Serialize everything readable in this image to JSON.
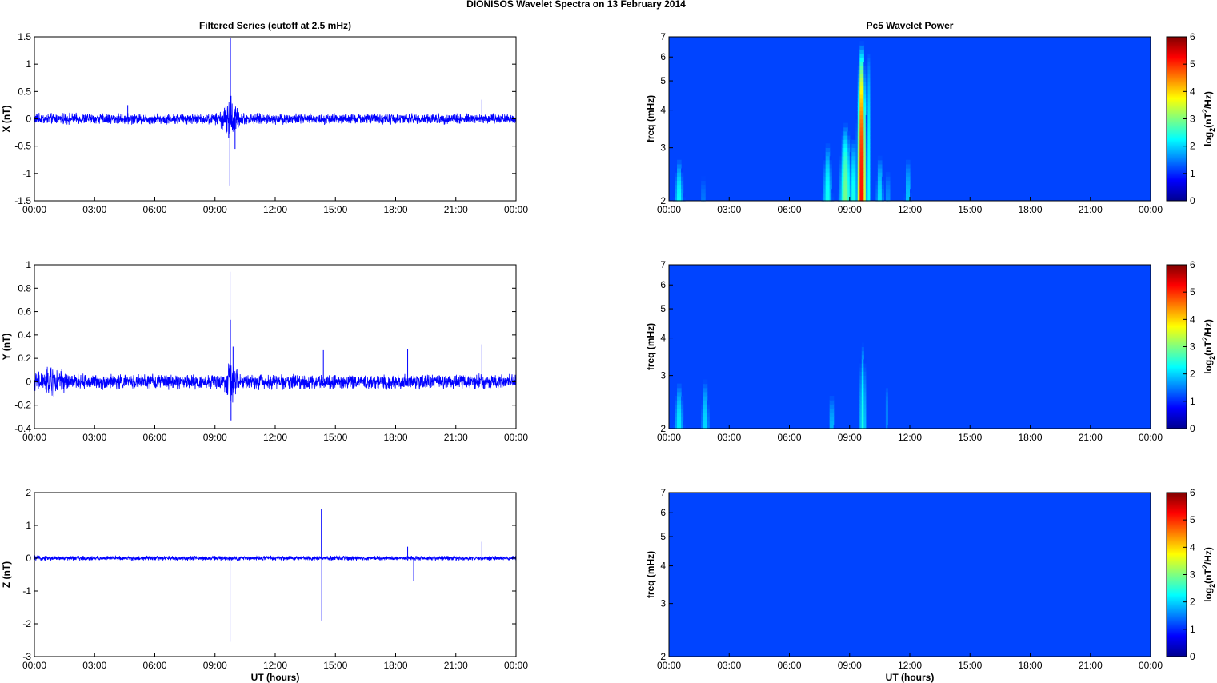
{
  "figure": {
    "suptitle": "DIONISOS Wavelet Spectra on 13 February  2014",
    "left_title": "Filtered Series (cutoff at 2.5 mHz)",
    "right_title": "Pc5 Wavelet Power",
    "xlabel": "UT (hours)",
    "freq_label": "freq (mHz)",
    "colorbar_label": "log2(nT2/Hz)"
  },
  "colors": {
    "series_line": "#0000ff",
    "axis": "#000000",
    "grid": "none",
    "colormap": "jet"
  },
  "chart_data": [
    {
      "type": "line",
      "panel": "X",
      "title": "Filtered Series (cutoff at 2.5 mHz)",
      "xlabel": "",
      "ylabel": "X (nT)",
      "xlim": [
        0,
        24
      ],
      "ylim": [
        -1.5,
        1.5
      ],
      "xticks": [
        "00:00",
        "03:00",
        "06:00",
        "09:00",
        "12:00",
        "15:00",
        "18:00",
        "21:00",
        "00:00"
      ],
      "yticks": [
        "-1.5",
        "-1",
        "-0.5",
        "0",
        "0.5",
        "1",
        "1.5"
      ],
      "background_amplitude": 0.07,
      "bursts": [
        {
          "t": 9.75,
          "a": 0.18,
          "w": 0.8
        }
      ],
      "spikes": [
        {
          "t": 9.77,
          "v": 1.47
        },
        {
          "t": 9.74,
          "v": -1.22
        },
        {
          "t": 9.8,
          "v": 0.42
        },
        {
          "t": 9.68,
          "v": -0.35
        },
        {
          "t": 4.65,
          "v": 0.25
        },
        {
          "t": 22.3,
          "v": 0.35
        },
        {
          "t": 10.0,
          "v": -0.55
        }
      ]
    },
    {
      "type": "heatmap",
      "panel": "X",
      "title": "Pc5 Wavelet Power",
      "ylabel": "freq (mHz)",
      "xlim": [
        0,
        24
      ],
      "ylim": [
        2,
        7
      ],
      "yscale": "log",
      "yticks": [
        "2",
        "3",
        "4",
        "5",
        "6",
        "7"
      ],
      "clim": [
        0,
        6
      ],
      "colorbar_ticks": [
        "0",
        "1",
        "2",
        "3",
        "4",
        "5",
        "6"
      ],
      "colorbar_label": "log2(nT2/Hz)",
      "blobs": [
        {
          "t": 0.5,
          "fc": 2.0,
          "fh": 2.9,
          "w": 0.22,
          "p": 2.1
        },
        {
          "t": 1.7,
          "fc": 2.0,
          "fh": 2.7,
          "w": 0.12,
          "p": 1.1
        },
        {
          "t": 7.9,
          "fc": 2.0,
          "fh": 3.3,
          "w": 0.22,
          "p": 2.2
        },
        {
          "t": 8.8,
          "fc": 2.0,
          "fh": 3.8,
          "w": 0.28,
          "p": 3.0
        },
        {
          "t": 9.2,
          "fc": 2.0,
          "fh": 3.5,
          "w": 0.15,
          "p": 2.4
        },
        {
          "t": 9.6,
          "fc": 2.0,
          "fh": 7.0,
          "w": 0.2,
          "p": 6.2
        },
        {
          "t": 9.95,
          "fc": 2.0,
          "fh": 7.0,
          "w": 0.08,
          "p": 2.0
        },
        {
          "t": 10.5,
          "fc": 2.0,
          "fh": 3.0,
          "w": 0.18,
          "p": 1.9
        },
        {
          "t": 10.9,
          "fc": 2.0,
          "fh": 2.8,
          "w": 0.12,
          "p": 1.3
        },
        {
          "t": 11.9,
          "fc": 2.0,
          "fh": 3.0,
          "w": 0.15,
          "p": 1.7
        }
      ]
    },
    {
      "type": "line",
      "panel": "Y",
      "title": "",
      "xlabel": "",
      "ylabel": "Y (nT)",
      "xlim": [
        0,
        24
      ],
      "ylim": [
        -0.4,
        1.0
      ],
      "xticks": [
        "00:00",
        "03:00",
        "06:00",
        "09:00",
        "12:00",
        "15:00",
        "18:00",
        "21:00",
        "00:00"
      ],
      "yticks": [
        "-0.4",
        "-0.2",
        "0",
        "0.2",
        "0.4",
        "0.6",
        "0.8",
        "1"
      ],
      "background_amplitude": 0.045,
      "bursts": [
        {
          "t": 0.9,
          "a": 0.05,
          "w": 1.3
        },
        {
          "t": 9.8,
          "a": 0.08,
          "w": 0.6
        }
      ],
      "spikes": [
        {
          "t": 9.75,
          "v": 0.94
        },
        {
          "t": 9.77,
          "v": 0.53
        },
        {
          "t": 9.8,
          "v": -0.33
        },
        {
          "t": 14.4,
          "v": 0.27
        },
        {
          "t": 18.6,
          "v": 0.28
        },
        {
          "t": 22.3,
          "v": 0.32
        },
        {
          "t": 9.9,
          "v": 0.3
        }
      ]
    },
    {
      "type": "heatmap",
      "panel": "Y",
      "title": "",
      "ylabel": "freq (mHz)",
      "xlim": [
        0,
        24
      ],
      "ylim": [
        2,
        7
      ],
      "yscale": "log",
      "yticks": [
        "2",
        "3",
        "4",
        "5",
        "6",
        "7"
      ],
      "clim": [
        0,
        6
      ],
      "colorbar_ticks": [
        "0",
        "1",
        "2",
        "3",
        "4",
        "5",
        "6"
      ],
      "colorbar_label": "log2(nT2/Hz)",
      "blobs": [
        {
          "t": 0.5,
          "fc": 2.1,
          "fh": 3.0,
          "w": 0.22,
          "p": 1.9
        },
        {
          "t": 1.8,
          "fc": 2.1,
          "fh": 3.1,
          "w": 0.18,
          "p": 1.8
        },
        {
          "t": 8.1,
          "fc": 2.0,
          "fh": 2.8,
          "w": 0.14,
          "p": 1.6
        },
        {
          "t": 8.9,
          "fc": 2.5,
          "fh": 2.9,
          "w": 0.06,
          "p": 0.5
        },
        {
          "t": 9.65,
          "fc": 2.0,
          "fh": 4.1,
          "w": 0.16,
          "p": 2.2
        },
        {
          "t": 9.6,
          "fc": 4.5,
          "fh": 7.0,
          "w": 0.05,
          "p": 0.8
        },
        {
          "t": 10.85,
          "fc": 2.3,
          "fh": 3.0,
          "w": 0.1,
          "p": 1.0
        },
        {
          "t": 21.8,
          "fc": 2.5,
          "fh": 2.9,
          "w": 0.05,
          "p": 0.4
        }
      ]
    },
    {
      "type": "line",
      "panel": "Z",
      "title": "",
      "xlabel": "UT (hours)",
      "ylabel": "Z (nT)",
      "xlim": [
        0,
        24
      ],
      "ylim": [
        -3,
        2
      ],
      "xticks": [
        "00:00",
        "03:00",
        "06:00",
        "09:00",
        "12:00",
        "15:00",
        "18:00",
        "21:00",
        "00:00"
      ],
      "yticks": [
        "-3",
        "-2",
        "-1",
        "0",
        "1",
        "2"
      ],
      "background_amplitude": 0.05,
      "bursts": [],
      "spikes": [
        {
          "t": 9.75,
          "v": -2.55
        },
        {
          "t": 14.3,
          "v": 1.5
        },
        {
          "t": 14.32,
          "v": -1.9
        },
        {
          "t": 18.9,
          "v": -0.7
        },
        {
          "t": 18.6,
          "v": 0.35
        },
        {
          "t": 22.3,
          "v": 0.5
        }
      ]
    },
    {
      "type": "heatmap",
      "panel": "Z",
      "title": "",
      "xlabel": "UT (hours)",
      "ylabel": "freq (mHz)",
      "xlim": [
        0,
        24
      ],
      "ylim": [
        2,
        7
      ],
      "yscale": "log",
      "yticks": [
        "2",
        "3",
        "4",
        "5",
        "6",
        "7"
      ],
      "clim": [
        0,
        6
      ],
      "colorbar_ticks": [
        "0",
        "1",
        "2",
        "3",
        "4",
        "5",
        "6"
      ],
      "colorbar_label": "log2(nT2/Hz)",
      "blobs": [
        {
          "t": 9.6,
          "fc": 3.8,
          "fh": 5.5,
          "w": 0.05,
          "p": 0.35
        },
        {
          "t": 9.0,
          "fc": 2.3,
          "fh": 2.4,
          "w": 0.2,
          "p": 0.2
        }
      ]
    }
  ]
}
